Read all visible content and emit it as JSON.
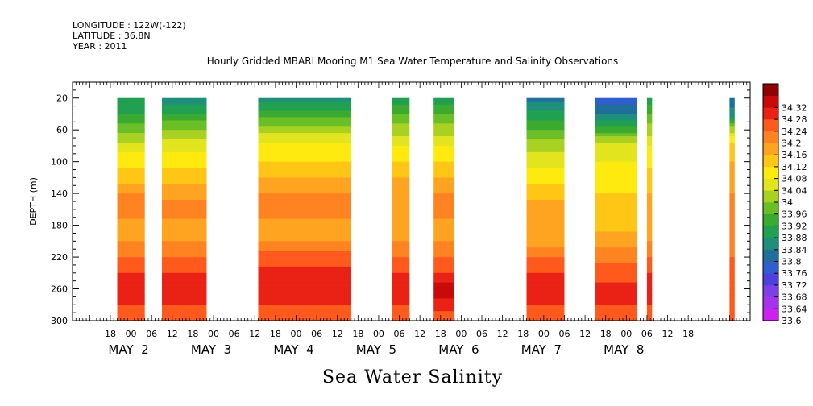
{
  "header": {
    "longitude": "LONGITUDE : 122W(-122)",
    "latitude": "LATITUDE : 36.8N",
    "year": "YEAR : 2011"
  },
  "chart_data": {
    "type": "heatmap",
    "title": "Hourly Gridded MBARI Mooring M1 Sea Water Temperature and Salinity Observations",
    "ylabel": "DEPTH (m)",
    "xlabel": "Sea Water Salinity",
    "ylim": [
      300,
      0
    ],
    "y_ticks": [
      20,
      60,
      100,
      140,
      180,
      220,
      260,
      300
    ],
    "x_hour_ticks": [
      "18",
      "00",
      "06",
      "12",
      "18",
      "00",
      "06",
      "12",
      "18",
      "00",
      "06",
      "12",
      "18",
      "00",
      "06",
      "12",
      "18",
      "00",
      "06",
      "12",
      "18",
      "00",
      "06",
      "12",
      "18",
      "00",
      "06",
      "12",
      "18"
    ],
    "x_day_labels": [
      "MAY  2",
      "MAY  3",
      "MAY  4",
      "MAY  5",
      "MAY  6",
      "MAY  7",
      "MAY  8"
    ],
    "colorbar_levels": [
      "33.6",
      "33.64",
      "33.68",
      "33.72",
      "33.76",
      "33.8",
      "33.84",
      "33.88",
      "33.92",
      "33.96",
      "34",
      "34.04",
      "34.08",
      "34.12",
      "34.16",
      "34.2",
      "34.24",
      "34.28",
      "34.32"
    ],
    "colorbar_colors": [
      "#cc22ee",
      "#a533ee",
      "#7d3fe8",
      "#5040dd",
      "#2f5fcc",
      "#206e9c",
      "#1d8f7a",
      "#20a050",
      "#3aab30",
      "#6abf26",
      "#a8d122",
      "#e2e41e",
      "#ffea10",
      "#ffc616",
      "#ffa420",
      "#ff8421",
      "#ff5a1d",
      "#ea2216",
      "#c80a0a",
      "#8f0303"
    ],
    "profile_depths": [
      20,
      40,
      60,
      80,
      100,
      120,
      140,
      160,
      180,
      200,
      220,
      240,
      260,
      280,
      300
    ],
    "data_blocks": [
      {
        "start_hour": -4,
        "end_hour": 4,
        "profile": [
          33.84,
          33.88,
          33.94,
          34.02,
          34.06,
          34.1,
          34.16,
          34.2,
          34.14,
          34.16,
          34.2,
          34.24,
          34.28,
          34.24,
          34.22
        ]
      },
      {
        "start_hour": 9,
        "end_hour": 22,
        "profile": [
          33.82,
          33.88,
          33.96,
          34.02,
          34.06,
          34.1,
          34.14,
          34.18,
          34.14,
          34.16,
          34.2,
          34.24,
          34.28,
          34.24,
          34.22
        ]
      },
      {
        "start_hour": 37,
        "end_hour": 64,
        "profile": [
          33.83,
          33.9,
          33.98,
          34.06,
          34.08,
          34.12,
          34.16,
          34.18,
          34.14,
          34.16,
          34.22,
          34.26,
          34.28,
          34.24,
          34.22
        ]
      },
      {
        "start_hour": 76,
        "end_hour": 81,
        "profile": [
          33.86,
          33.92,
          33.98,
          34.04,
          34.08,
          34.12,
          34.14,
          34.16,
          34.14,
          34.16,
          34.2,
          34.24,
          34.28,
          34.24,
          34.22
        ]
      },
      {
        "start_hour": 88,
        "end_hour": 94,
        "profile": [
          33.86,
          33.92,
          33.98,
          34.04,
          34.08,
          34.12,
          34.16,
          34.18,
          34.14,
          34.16,
          34.2,
          34.24,
          34.3,
          34.26,
          34.22
        ]
      },
      {
        "start_hour": 115,
        "end_hour": 126,
        "profile": [
          33.79,
          33.86,
          33.92,
          33.98,
          34.02,
          34.06,
          34.1,
          34.14,
          34.12,
          34.14,
          34.2,
          34.24,
          34.28,
          34.24,
          34.22
        ]
      },
      {
        "start_hour": 135,
        "end_hour": 147,
        "profile": [
          33.74,
          33.8,
          33.9,
          34.02,
          34.04,
          34.06,
          34.08,
          34.1,
          34.1,
          34.14,
          34.18,
          34.22,
          34.26,
          34.24,
          34.2
        ]
      },
      {
        "start_hour": 150,
        "end_hour": 151.5,
        "profile": [
          33.86,
          33.92,
          33.98,
          34.04,
          34.06,
          34.1,
          34.12,
          34.14,
          34.14,
          34.16,
          34.2,
          34.24,
          34.28,
          34.24,
          34.2
        ]
      },
      {
        "start_hour": 174,
        "end_hour": 175.5,
        "profile": [
          33.76,
          33.82,
          33.98,
          34.1,
          34.12,
          34.14,
          34.16,
          34.16,
          34.16,
          34.18,
          34.2,
          34.22,
          34.24,
          34.22,
          34.2
        ]
      }
    ]
  }
}
